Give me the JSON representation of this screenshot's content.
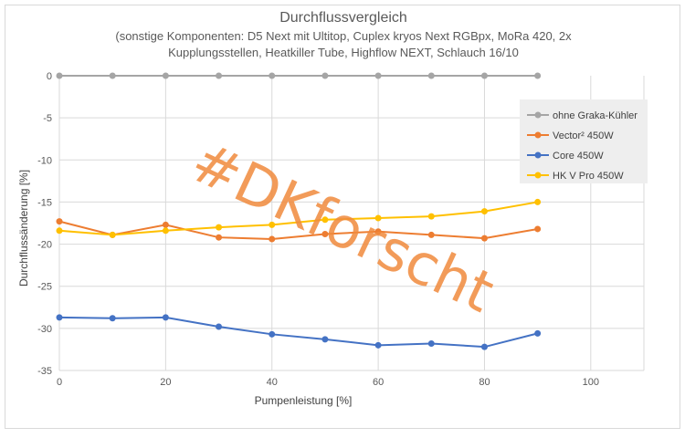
{
  "chart_data": {
    "type": "line",
    "title": "Durchflussvergleich",
    "subtitle_lines": [
      "(sonstige Komponenten:  D5 Next mit Ultitop,  Cuplex kryos Next RGBpx, MoRa 420,  2x",
      "Kupplungsstellen, Heatkiller Tube, Highflow NEXT, Schlauch 16/10"
    ],
    "xlabel": "Pumpenleistung [%]",
    "ylabel": "Durchflussänderung  [%]",
    "xlim": [
      0,
      110
    ],
    "ylim": [
      -35,
      0
    ],
    "x_ticks": [
      0,
      20,
      40,
      60,
      80,
      100
    ],
    "y_ticks": [
      0,
      -5,
      -10,
      -15,
      -20,
      -25,
      -30,
      -35
    ],
    "grid": true,
    "legend_position": "right",
    "x": [
      0,
      10,
      20,
      30,
      40,
      50,
      60,
      70,
      80,
      90
    ],
    "series": [
      {
        "name": "ohne Graka-Kühler",
        "color": "#a5a5a5",
        "values": [
          0,
          0,
          0,
          0,
          0,
          0,
          0,
          0,
          0,
          0
        ]
      },
      {
        "name": "Vector² 450W",
        "color": "#ed7d31",
        "values": [
          -17.3,
          -18.9,
          -17.7,
          -19.2,
          -19.4,
          -18.8,
          -18.5,
          -18.9,
          -19.3,
          -18.2
        ]
      },
      {
        "name": "Core 450W",
        "color": "#4472c4",
        "values": [
          -28.7,
          -28.8,
          -28.7,
          -29.8,
          -30.7,
          -31.3,
          -32.0,
          -31.8,
          -32.2,
          -30.6
        ]
      },
      {
        "name": "HK V Pro 450W",
        "color": "#ffc000",
        "values": [
          -18.4,
          -18.9,
          -18.4,
          -18.0,
          -17.7,
          -17.1,
          -16.9,
          -16.7,
          -16.1,
          -15.0
        ]
      }
    ],
    "watermark": "#DKforscht"
  }
}
